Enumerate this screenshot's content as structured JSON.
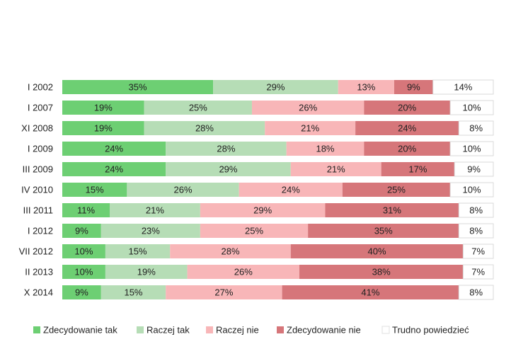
{
  "chart_data": {
    "type": "bar",
    "orientation": "horizontal",
    "stacked": true,
    "percent_stacked": true,
    "unit": "%",
    "categories": [
      "I 2002",
      "I 2007",
      "XI 2008",
      "I 2009",
      "III 2009",
      "IV 2010",
      "III 2011",
      "I 2012",
      "VII 2012",
      "II 2013",
      "X 2014"
    ],
    "series": [
      {
        "name": "Zdecydowanie tak",
        "color": "#6dcf73",
        "values": [
          35,
          19,
          19,
          24,
          24,
          15,
          11,
          9,
          10,
          10,
          9
        ]
      },
      {
        "name": "Raczej tak",
        "color": "#b6ddb6",
        "values": [
          29,
          25,
          28,
          28,
          29,
          26,
          21,
          23,
          15,
          19,
          15
        ]
      },
      {
        "name": "Raczej nie",
        "color": "#f8b6b8",
        "values": [
          13,
          26,
          21,
          18,
          21,
          24,
          29,
          25,
          28,
          26,
          27
        ]
      },
      {
        "name": "Zdecydowanie nie",
        "color": "#d6767a",
        "values": [
          9,
          20,
          24,
          20,
          17,
          25,
          31,
          35,
          40,
          38,
          41
        ]
      },
      {
        "name": "Trudno powiedzieć",
        "color": "#ffffff",
        "values": [
          14,
          10,
          8,
          10,
          9,
          10,
          8,
          8,
          7,
          7,
          8
        ]
      }
    ],
    "xlim": [
      0,
      100
    ],
    "grid": false,
    "legend_position": "bottom"
  }
}
